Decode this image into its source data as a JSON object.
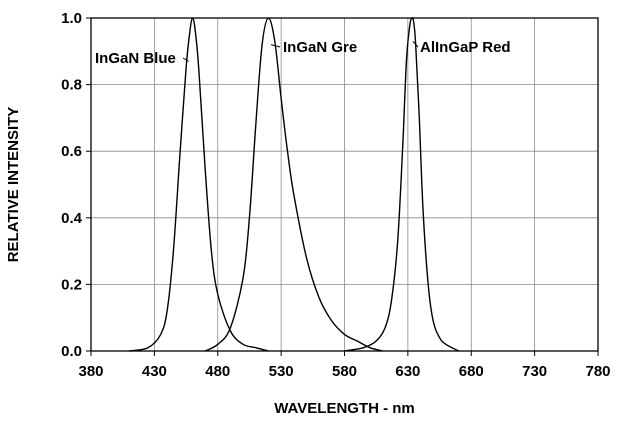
{
  "chart_data": {
    "type": "line",
    "title": "",
    "xlabel": "WAVELENGTH - nm",
    "ylabel": "RELATIVE INTENSITY",
    "xlim": [
      380,
      780
    ],
    "ylim": [
      0,
      1.0
    ],
    "grid": true,
    "x_ticks": [
      380,
      430,
      480,
      530,
      580,
      630,
      680,
      730,
      780
    ],
    "x_tick_labels": [
      "380",
      "430",
      "480",
      "530",
      "580",
      "630",
      "680",
      "730",
      "780"
    ],
    "y_ticks": [
      0,
      0.2,
      0.4,
      0.6,
      0.8,
      1.0
    ],
    "y_tick_labels": [
      "0.0",
      "0.2",
      "0.4",
      "0.6",
      "0.8",
      "1.0"
    ],
    "series": [
      {
        "name": "InGaN Blue",
        "x": [
          410,
          425,
          435,
          440,
          445,
          450,
          455,
          458,
          460,
          462,
          465,
          470,
          475,
          480,
          490,
          500,
          510,
          520
        ],
        "y": [
          0.0,
          0.01,
          0.05,
          0.12,
          0.3,
          0.58,
          0.85,
          0.96,
          1.0,
          0.97,
          0.85,
          0.55,
          0.3,
          0.17,
          0.06,
          0.02,
          0.01,
          0.0
        ]
      },
      {
        "name": "InGaN Gre",
        "x": [
          470,
          480,
          490,
          500,
          505,
          510,
          515,
          520,
          525,
          530,
          535,
          540,
          550,
          560,
          570,
          580,
          590,
          600,
          610
        ],
        "y": [
          0.0,
          0.02,
          0.07,
          0.22,
          0.4,
          0.68,
          0.92,
          1.0,
          0.93,
          0.76,
          0.6,
          0.47,
          0.28,
          0.16,
          0.09,
          0.05,
          0.03,
          0.01,
          0.0
        ]
      },
      {
        "name": "AlInGaP Red",
        "x": [
          580,
          595,
          605,
          612,
          617,
          622,
          626,
          629,
          632,
          634,
          636,
          639,
          642,
          646,
          650,
          655,
          660,
          670
        ],
        "y": [
          0.0,
          0.01,
          0.03,
          0.07,
          0.15,
          0.33,
          0.62,
          0.88,
          0.99,
          1.0,
          0.93,
          0.7,
          0.42,
          0.2,
          0.09,
          0.04,
          0.02,
          0.0
        ]
      }
    ]
  }
}
